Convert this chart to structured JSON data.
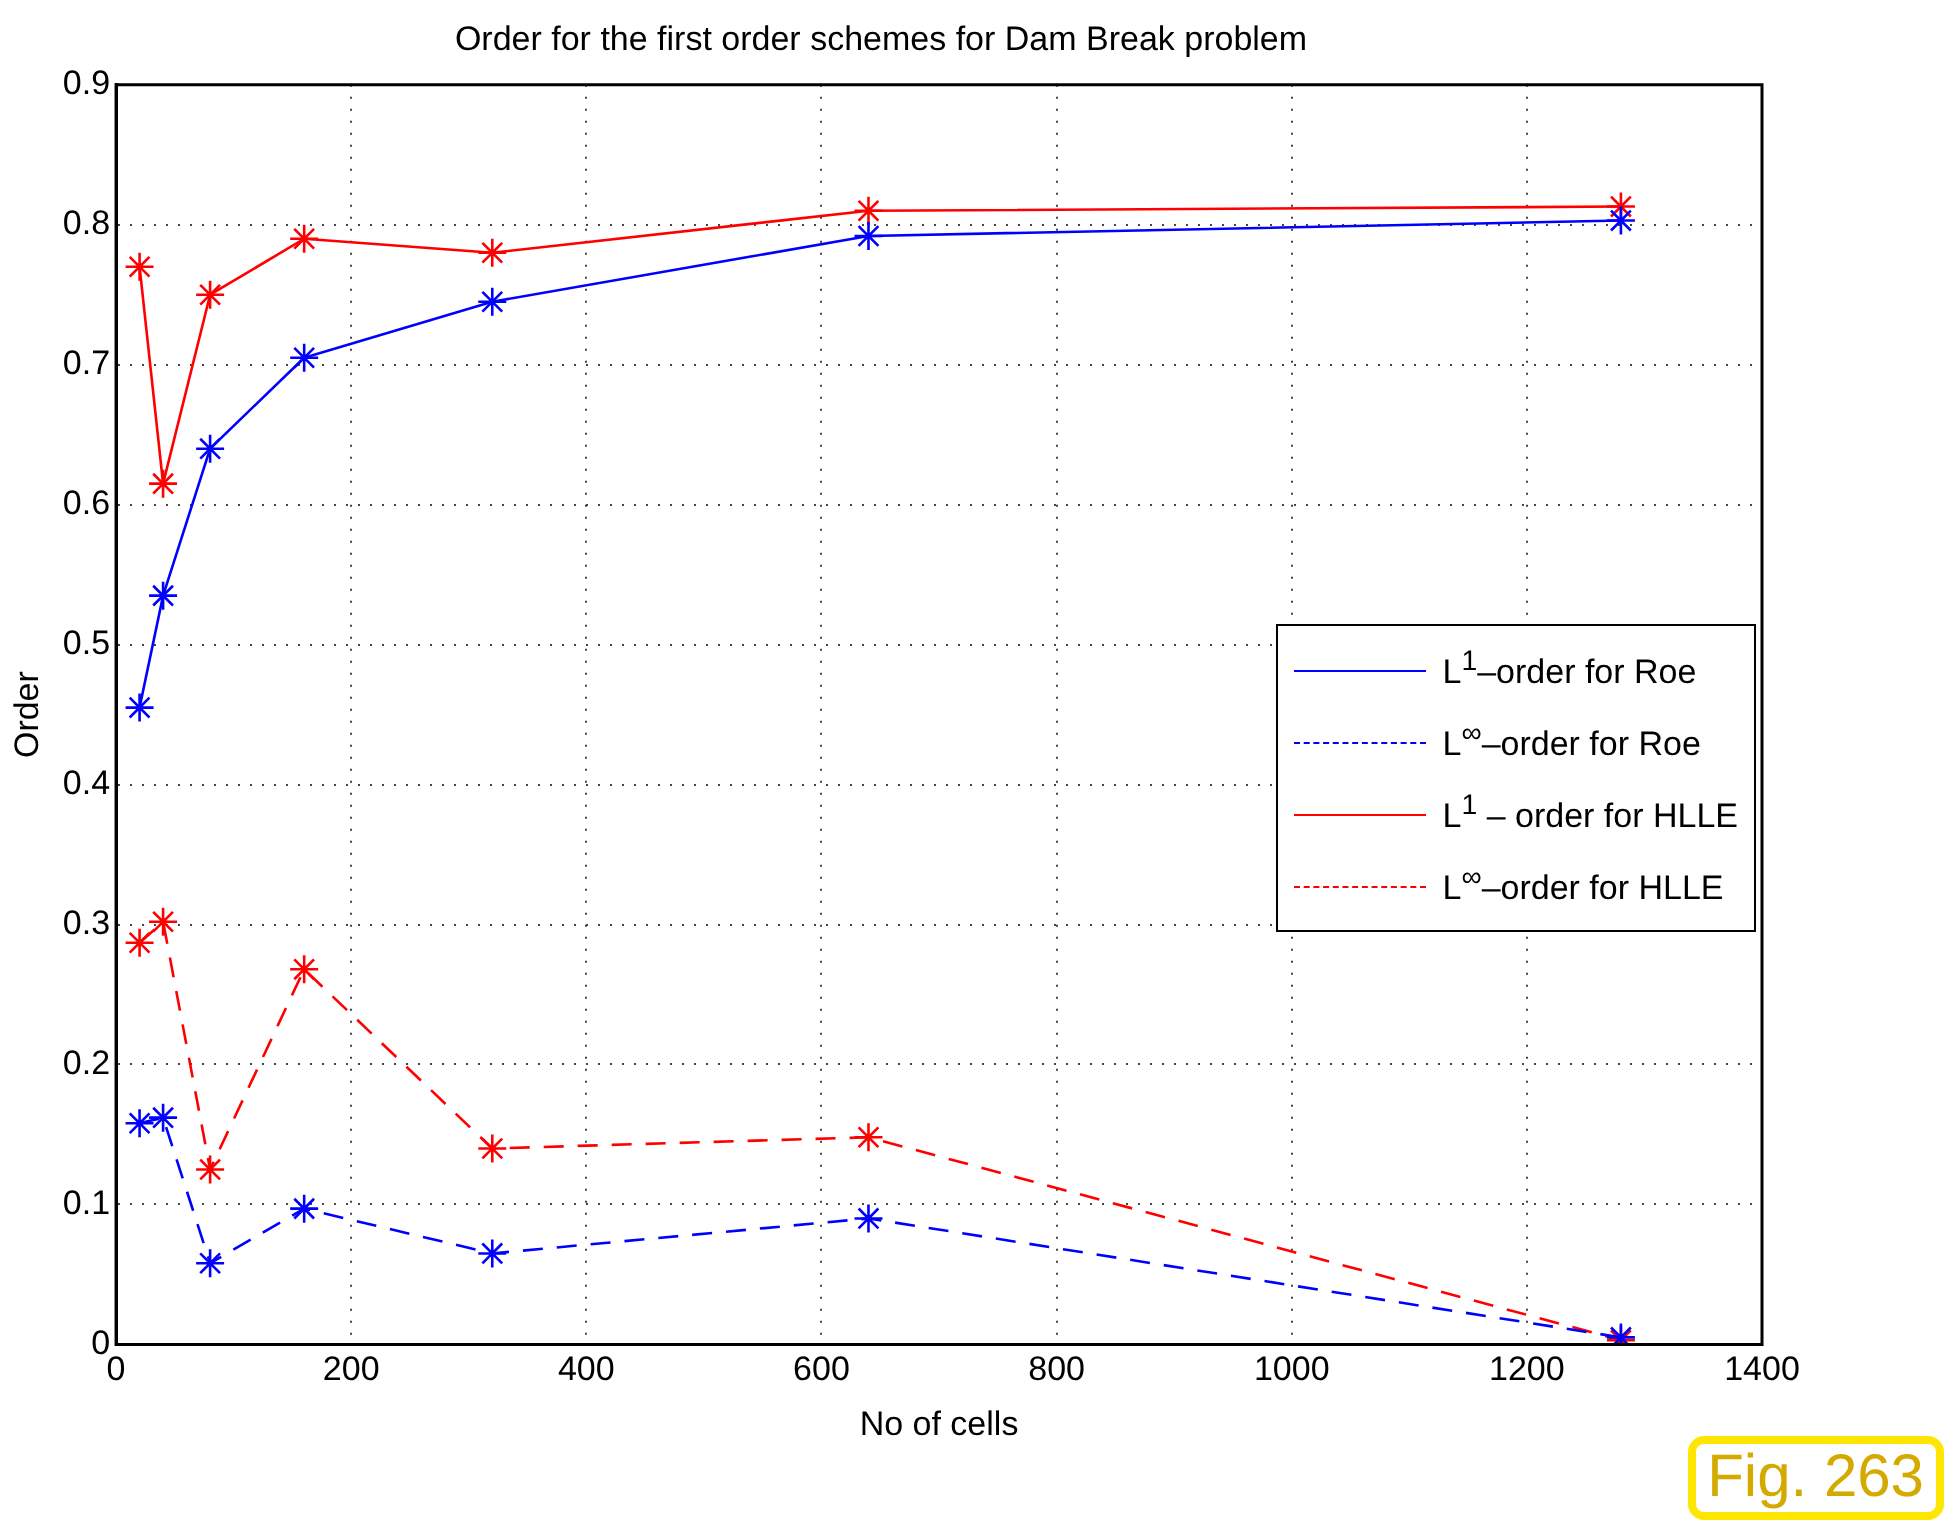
{
  "chart_data": {
    "type": "line",
    "title": "Order for the first order schemes for Dam Break problem",
    "xlabel": "No of cells",
    "ylabel": "Order",
    "x": [
      20,
      40,
      80,
      160,
      320,
      640,
      1280
    ],
    "series": [
      {
        "name": "L$^{1}$–order for Roe",
        "color": "#0000ff",
        "line_style": "solid",
        "values": [
          0.455,
          0.535,
          0.64,
          0.705,
          0.745,
          0.792,
          0.803
        ]
      },
      {
        "name": "L$^{∞}$–order for Roe",
        "color": "#0000ff",
        "line_style": "dashed",
        "values": [
          0.158,
          0.162,
          0.058,
          0.097,
          0.065,
          0.09,
          0.005
        ]
      },
      {
        "name": "L$^{1}$ – order for HLLE",
        "color": "#ff0000",
        "line_style": "solid",
        "values": [
          0.77,
          0.615,
          0.75,
          0.79,
          0.78,
          0.81,
          0.813
        ]
      },
      {
        "name": "L$^{∞}$–order for HLLE",
        "color": "#ff0000",
        "line_style": "dashed",
        "values": [
          0.287,
          0.302,
          0.125,
          0.268,
          0.14,
          0.148,
          0.003
        ]
      }
    ],
    "xlim": [
      0,
      1400
    ],
    "xticks": [
      0,
      200,
      400,
      600,
      800,
      1000,
      1200,
      1400
    ],
    "ylim": [
      0,
      0.9
    ],
    "yticks": [
      0,
      0.1,
      0.2,
      0.3,
      0.4,
      0.5,
      0.6,
      0.7,
      0.8,
      0.9
    ],
    "grid": true,
    "legend": "right",
    "marker": "cross",
    "annotations": [
      "Fig. 263"
    ]
  }
}
